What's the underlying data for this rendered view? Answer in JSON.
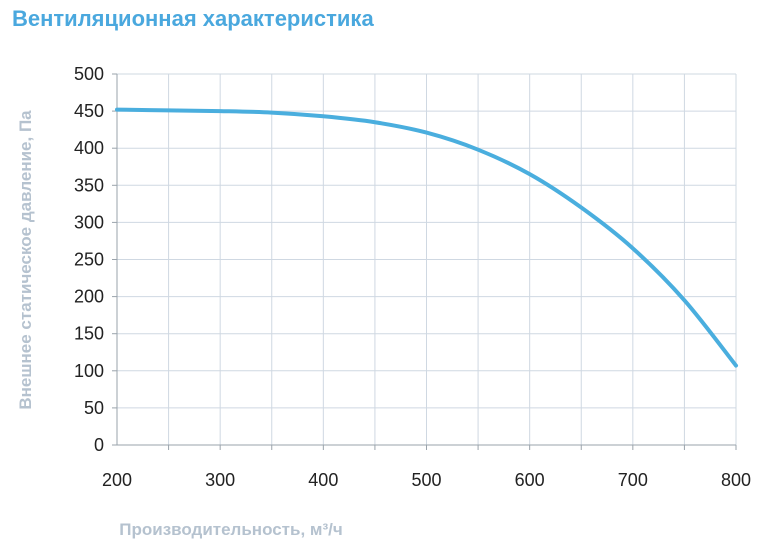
{
  "title": "Вентиляционная характеристика",
  "chart_data": {
    "type": "line",
    "xlabel": "Производительность, м³/ч",
    "ylabel": "Внешнее статическое давление, Па",
    "xlim": [
      200,
      800
    ],
    "ylim": [
      0,
      500
    ],
    "x_ticks": [
      "200",
      "300",
      "400",
      "500",
      "600",
      "700",
      "800"
    ],
    "y_ticks": [
      "0",
      "50",
      "100",
      "150",
      "200",
      "250",
      "300",
      "350",
      "400",
      "450",
      "500"
    ],
    "grid": true,
    "series": [
      {
        "color": "#4aaede",
        "x": [
          200,
          250,
          300,
          350,
          400,
          450,
          500,
          550,
          600,
          650,
          700,
          750,
          800
        ],
        "y": [
          452,
          451,
          450,
          448,
          443,
          435,
          421,
          398,
          365,
          320,
          265,
          195,
          107
        ]
      }
    ]
  }
}
